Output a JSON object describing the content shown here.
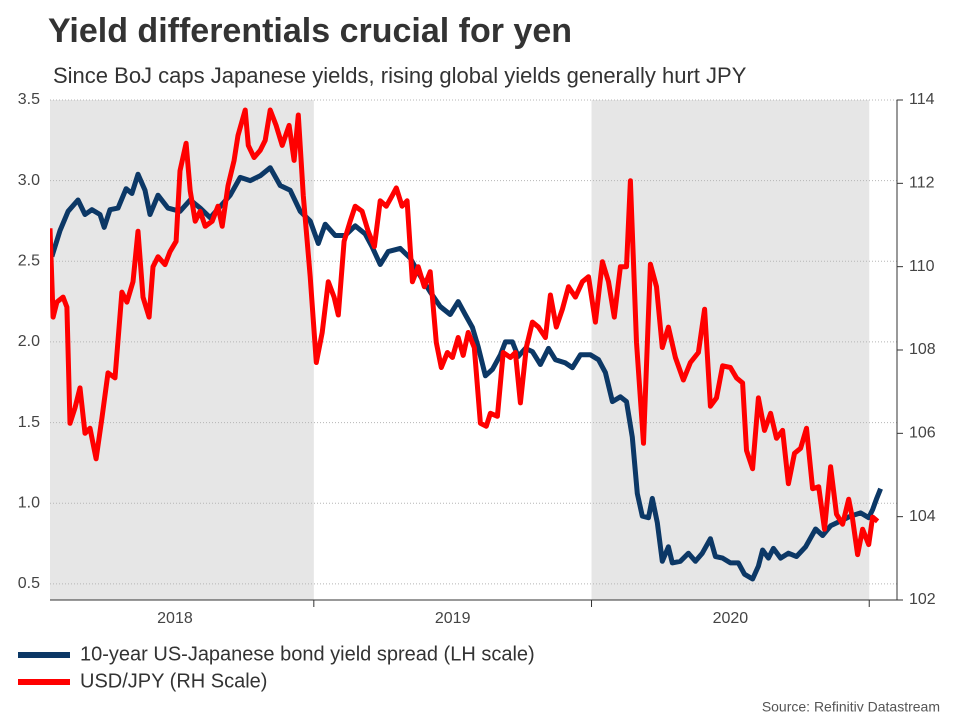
{
  "chart_data": {
    "type": "line",
    "title": "Yield differentials crucial for yen",
    "subtitle": "Since BoJ caps Japanese yields, rising global yields generally hurt JPY",
    "source": "Source: Refinitiv Datastream",
    "xlim": [
      2018.05,
      2021.1
    ],
    "xticks": [
      2019,
      2020,
      2021
    ],
    "xtick_labels": [
      {
        "value": 2018.5,
        "label": "2018"
      },
      {
        "value": 2019.5,
        "label": "2019"
      },
      {
        "value": 2020.5,
        "label": "2020"
      }
    ],
    "shaded_periods": [
      [
        2018,
        2019
      ],
      [
        2020,
        2021
      ]
    ],
    "ylim": [
      0.4,
      3.5
    ],
    "yticks": [
      {
        "value": 0.5,
        "label": "0.5"
      },
      {
        "value": 1,
        "label": "1.0"
      },
      {
        "value": 1.5,
        "label": "1.5"
      },
      {
        "value": 2,
        "label": "2.0"
      },
      {
        "value": 2.5,
        "label": "2.5"
      },
      {
        "value": 3,
        "label": "3.0"
      },
      {
        "value": 3.5,
        "label": "3.5"
      }
    ],
    "y2lim": [
      102,
      114
    ],
    "y2ticks": [
      102,
      104,
      106,
      108,
      110,
      112,
      114
    ],
    "grid": true,
    "series": [
      {
        "name": "10-year US-Japanese bond yield spread (LH scale)",
        "color": "#0c3866",
        "axis": "y",
        "x": [
          2018.057,
          2018.086,
          2018.115,
          2018.151,
          2018.176,
          2018.201,
          2018.23,
          2018.245,
          2018.266,
          2018.295,
          2018.324,
          2018.345,
          2018.367,
          2018.392,
          2018.41,
          2018.439,
          2018.475,
          2018.518,
          2018.555,
          2018.591,
          2018.627,
          2018.663,
          2018.699,
          2018.735,
          2018.771,
          2018.807,
          2018.843,
          2018.879,
          2018.915,
          2018.951,
          2018.987,
          2019.016,
          2019.041,
          2019.077,
          2019.113,
          2019.149,
          2019.185,
          2019.21,
          2019.239,
          2019.268,
          2019.311,
          2019.347,
          2019.383,
          2019.419,
          2019.455,
          2019.491,
          2019.52,
          2019.545,
          2019.571,
          2019.592,
          2019.618,
          2019.643,
          2019.672,
          2019.69,
          2019.715,
          2019.736,
          2019.762,
          2019.787,
          2019.816,
          2019.845,
          2019.87,
          2019.906,
          2019.931,
          2019.96,
          2019.996,
          2020.025,
          2020.05,
          2020.075,
          2020.104,
          2020.126,
          2020.147,
          2020.165,
          2020.183,
          2020.205,
          2020.219,
          2020.237,
          2020.255,
          2020.277,
          2020.291,
          2020.32,
          2020.349,
          2020.374,
          2020.399,
          2020.428,
          2020.446,
          2020.472,
          2020.5,
          2020.529,
          2020.551,
          2020.58,
          2020.601,
          2020.616,
          2020.637,
          2020.655,
          2020.681,
          2020.709,
          2020.738,
          2020.771,
          2020.807,
          2020.832,
          2020.861,
          2020.897,
          2020.933,
          2020.969,
          2020.998,
          2021.012,
          2021.027,
          2021.041
        ],
        "values": [
          2.53,
          2.69,
          2.81,
          2.88,
          2.79,
          2.82,
          2.79,
          2.71,
          2.82,
          2.83,
          2.95,
          2.92,
          3.04,
          2.94,
          2.79,
          2.91,
          2.83,
          2.81,
          2.88,
          2.83,
          2.77,
          2.84,
          2.91,
          3.02,
          3.0,
          3.03,
          3.08,
          2.97,
          2.94,
          2.81,
          2.75,
          2.61,
          2.73,
          2.66,
          2.66,
          2.72,
          2.67,
          2.59,
          2.48,
          2.56,
          2.58,
          2.52,
          2.41,
          2.31,
          2.22,
          2.17,
          2.25,
          2.17,
          2.09,
          1.97,
          1.79,
          1.83,
          1.92,
          2.0,
          2.0,
          1.91,
          1.96,
          1.94,
          1.86,
          1.96,
          1.89,
          1.87,
          1.84,
          1.92,
          1.92,
          1.89,
          1.81,
          1.63,
          1.66,
          1.63,
          1.41,
          1.06,
          0.92,
          0.91,
          1.03,
          0.88,
          0.64,
          0.73,
          0.63,
          0.64,
          0.69,
          0.64,
          0.69,
          0.78,
          0.67,
          0.66,
          0.63,
          0.63,
          0.56,
          0.53,
          0.61,
          0.71,
          0.66,
          0.72,
          0.66,
          0.69,
          0.67,
          0.73,
          0.84,
          0.8,
          0.86,
          0.89,
          0.92,
          0.94,
          0.91,
          0.96,
          1.03,
          1.09
        ]
      },
      {
        "name": "USD/JPY (RH Scale)",
        "color": "#ff0000",
        "axis": "y2",
        "x": [
          2018.05,
          2018.061,
          2018.075,
          2018.097,
          2018.111,
          2018.122,
          2018.14,
          2018.158,
          2018.176,
          2018.194,
          2018.216,
          2018.237,
          2018.259,
          2018.284,
          2018.309,
          2018.327,
          2018.349,
          2018.367,
          2018.385,
          2018.407,
          2018.421,
          2018.439,
          2018.464,
          2018.482,
          2018.504,
          2018.518,
          2018.54,
          2018.555,
          2018.573,
          2018.591,
          2018.609,
          2018.634,
          2018.655,
          2018.67,
          2018.691,
          2018.713,
          2018.727,
          2018.753,
          2018.764,
          2018.785,
          2018.807,
          2018.825,
          2018.843,
          2018.864,
          2018.886,
          2018.911,
          2018.929,
          2018.944,
          2018.962,
          2018.987,
          2019.009,
          2019.03,
          2019.052,
          2019.073,
          2019.088,
          2019.109,
          2019.131,
          2019.149,
          2019.174,
          2019.196,
          2019.218,
          2019.239,
          2019.261,
          2019.282,
          2019.297,
          2019.318,
          2019.336,
          2019.355,
          2019.376,
          2019.398,
          2019.419,
          2019.441,
          2019.459,
          2019.481,
          2019.499,
          2019.52,
          2019.538,
          2019.556,
          2019.578,
          2019.6,
          2019.621,
          2019.636,
          2019.661,
          2019.682,
          2019.708,
          2019.726,
          2019.744,
          2019.765,
          2019.787,
          2019.809,
          2019.834,
          2019.852,
          2019.873,
          2019.895,
          2019.917,
          2019.942,
          2019.967,
          2019.989,
          2020.014,
          2020.039,
          2020.061,
          2020.082,
          2020.104,
          2020.126,
          2020.14,
          2020.162,
          2020.187,
          2020.212,
          2020.234,
          2020.255,
          2020.277,
          2020.302,
          2020.331,
          2020.356,
          2020.385,
          2020.407,
          2020.428,
          2020.45,
          2020.472,
          2020.5,
          2020.522,
          2020.544,
          2020.558,
          2020.58,
          2020.601,
          2020.623,
          2020.645,
          2020.666,
          2020.688,
          2020.709,
          2020.731,
          2020.753,
          2020.774,
          2020.796,
          2020.818,
          2020.839,
          2020.861,
          2020.882,
          2020.904,
          2020.926,
          2020.94,
          2020.958,
          2020.976,
          2020.998,
          2021.012,
          2021.03
        ],
        "values": [
          110.92,
          108.79,
          109.15,
          109.27,
          109.03,
          106.24,
          106.61,
          107.09,
          106.0,
          106.12,
          105.39,
          106.36,
          107.45,
          107.33,
          109.39,
          109.15,
          109.64,
          110.85,
          109.27,
          108.79,
          110.0,
          110.24,
          110.05,
          110.36,
          110.61,
          112.3,
          112.96,
          111.82,
          111.09,
          111.33,
          110.97,
          111.09,
          111.45,
          110.97,
          111.94,
          112.55,
          113.15,
          113.76,
          112.91,
          112.62,
          112.79,
          113.03,
          113.76,
          113.39,
          112.91,
          113.39,
          112.55,
          113.64,
          111.7,
          109.76,
          107.7,
          108.42,
          109.64,
          109.27,
          108.84,
          110.61,
          111.09,
          111.45,
          111.33,
          110.85,
          110.48,
          111.58,
          111.45,
          111.7,
          111.89,
          111.45,
          111.58,
          109.64,
          110.0,
          109.52,
          109.88,
          108.18,
          107.58,
          107.94,
          107.82,
          108.3,
          107.87,
          108.42,
          108.06,
          106.24,
          106.17,
          106.48,
          106.41,
          107.94,
          107.82,
          107.94,
          106.73,
          108.06,
          108.67,
          108.55,
          108.3,
          109.32,
          108.55,
          108.98,
          109.52,
          109.27,
          109.64,
          109.76,
          108.67,
          110.12,
          109.64,
          108.79,
          110.0,
          110.0,
          112.06,
          108.18,
          105.76,
          110.06,
          109.52,
          108.06,
          108.55,
          107.82,
          107.28,
          107.7,
          107.94,
          108.98,
          106.65,
          106.85,
          107.62,
          107.58,
          107.33,
          107.21,
          105.59,
          105.15,
          106.85,
          106.07,
          106.48,
          105.88,
          106.07,
          104.79,
          105.52,
          105.64,
          106.12,
          104.67,
          104.72,
          103.7,
          105.2,
          104.06,
          103.82,
          104.42,
          103.94,
          103.09,
          103.7,
          103.33,
          103.99,
          103.89
        ]
      }
    ]
  }
}
